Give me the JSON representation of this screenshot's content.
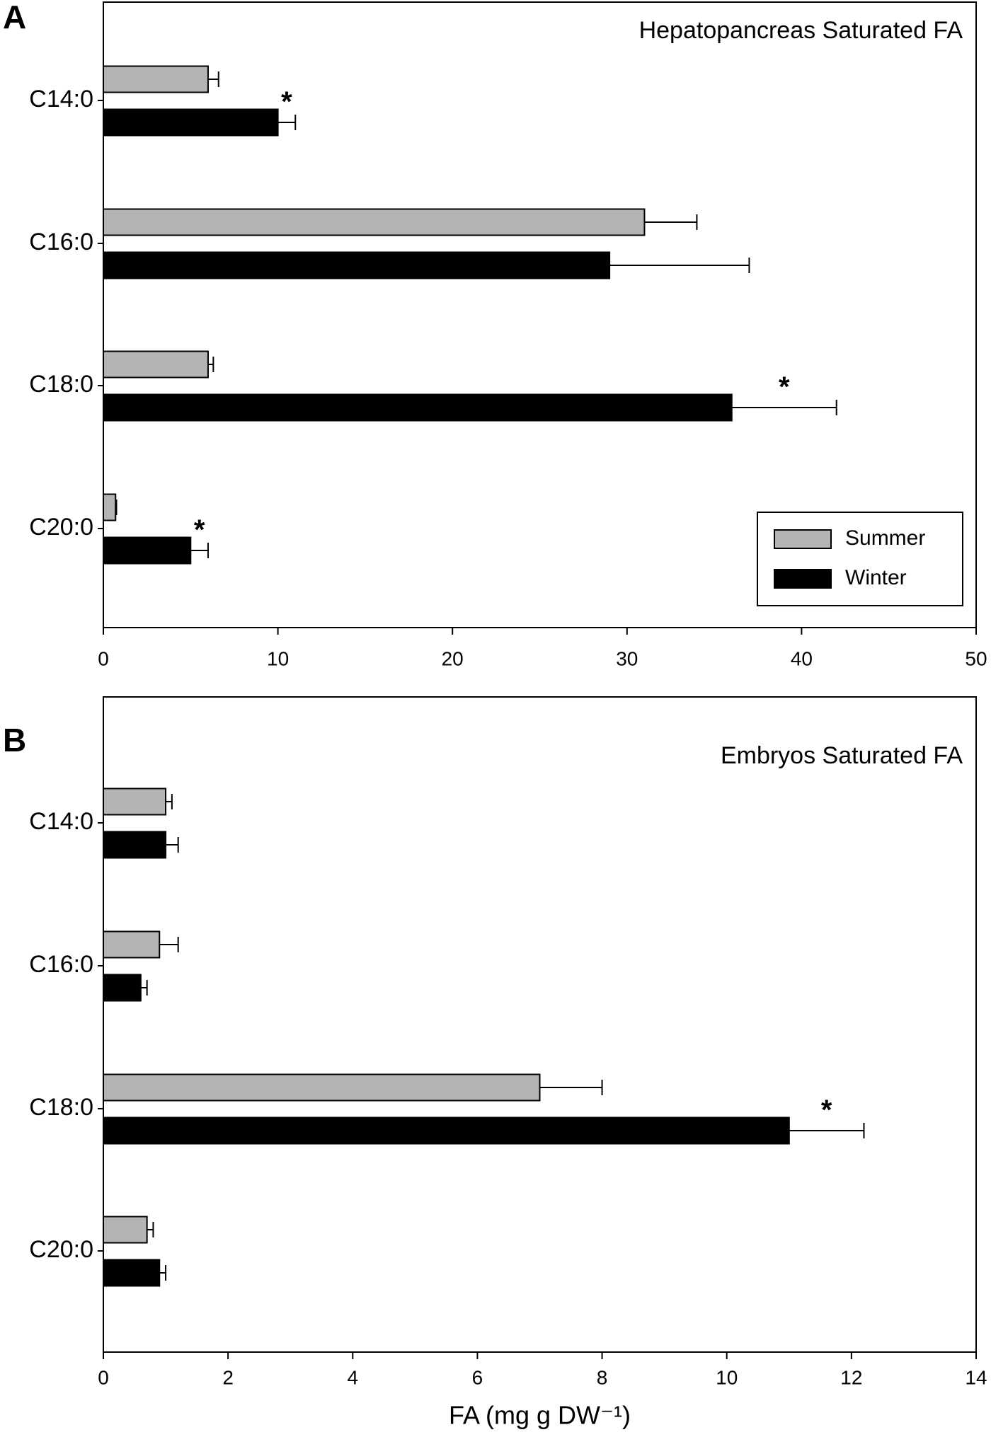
{
  "chart_data": [
    {
      "type": "bar",
      "orientation": "horizontal",
      "panel": "A",
      "title": "Hepatopancreas Saturated FA",
      "categories": [
        "C14:0",
        "C16:0",
        "C18:0",
        "C20:0"
      ],
      "series": [
        {
          "name": "Summer",
          "color": "#b4b4b4",
          "values": [
            6,
            31,
            6,
            0.7
          ],
          "errors": [
            0.6,
            3,
            0.3,
            0.05
          ]
        },
        {
          "name": "Winter",
          "color": "#000000",
          "values": [
            10,
            29,
            36,
            5
          ],
          "errors": [
            1,
            8,
            6,
            1
          ]
        }
      ],
      "annotations": [
        {
          "text": "*",
          "series": "Winter",
          "category": "C14:0"
        },
        {
          "text": "*",
          "series": "Winter",
          "category": "C18:0"
        },
        {
          "text": "*",
          "series": "Winter",
          "category": "C20:0"
        }
      ],
      "xlim": [
        0,
        50
      ],
      "xticks": [
        0,
        10,
        20,
        30,
        40,
        50
      ],
      "legend": "lower right"
    },
    {
      "type": "bar",
      "orientation": "horizontal",
      "panel": "B",
      "title": "Embryos Saturated FA",
      "categories": [
        "C14:0",
        "C16:0",
        "C18:0",
        "C20:0"
      ],
      "series": [
        {
          "name": "Summer",
          "color": "#b4b4b4",
          "values": [
            1.0,
            0.9,
            7,
            0.7
          ],
          "errors": [
            0.1,
            0.3,
            1,
            0.1
          ]
        },
        {
          "name": "Winter",
          "color": "#000000",
          "values": [
            1.0,
            0.6,
            11,
            0.9
          ],
          "errors": [
            0.2,
            0.1,
            1.2,
            0.1
          ]
        }
      ],
      "annotations": [
        {
          "text": "*",
          "series": "Winter",
          "category": "C18:0"
        }
      ],
      "xlim": [
        0,
        14
      ],
      "xticks": [
        0,
        2,
        4,
        6,
        8,
        10,
        12,
        14
      ],
      "xlabel": "FA (mg g DW⁻¹)"
    }
  ]
}
